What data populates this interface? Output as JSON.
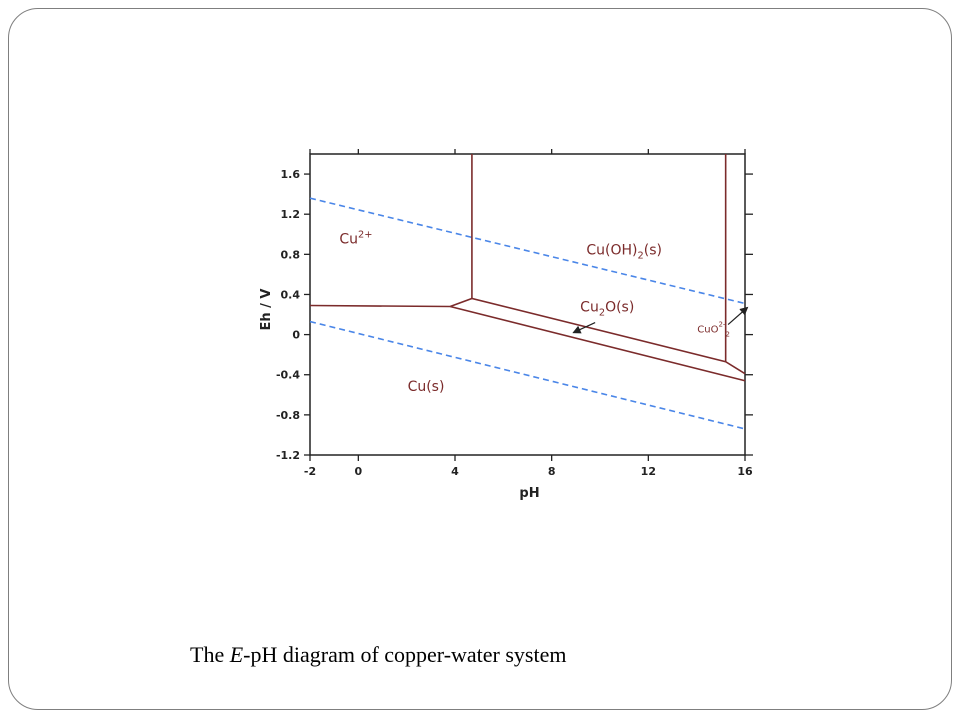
{
  "caption": {
    "prefix": "The ",
    "italic": "E",
    "suffix": "-pH diagram of copper-water system"
  },
  "chart_data": {
    "type": "line",
    "xlabel": "pH",
    "ylabel": "Eh / V",
    "xlim": [
      -2,
      16
    ],
    "ylim": [
      -1.2,
      1.8
    ],
    "xticks": [
      -2,
      0,
      4,
      8,
      12,
      16
    ],
    "yticks": [
      1.6,
      1.2,
      0.8,
      0.4,
      0,
      -0.4,
      -0.8,
      -1.2
    ],
    "grid": false,
    "colors": {
      "boundary": "#7b2b2b",
      "water": "#4a86e8",
      "axis": "#222222"
    },
    "boundaries": [
      {
        "name": "Cu2+/Cu",
        "points": [
          [
            -2,
            0.29
          ],
          [
            3.8,
            0.28
          ]
        ]
      },
      {
        "name": "Cu2+/Cu(OH)2",
        "points": [
          [
            4.7,
            1.8
          ],
          [
            4.7,
            0.36
          ]
        ]
      },
      {
        "name": "Cu(OH)2/CuO2 2-",
        "points": [
          [
            15.2,
            1.8
          ],
          [
            15.2,
            -0.27
          ]
        ]
      },
      {
        "name": "Cu2O/Cu(OH)2",
        "points": [
          [
            3.8,
            0.28
          ],
          [
            4.7,
            0.36
          ],
          [
            15.2,
            -0.27
          ],
          [
            16,
            -0.39
          ]
        ]
      },
      {
        "name": "Cu/Cu2O",
        "points": [
          [
            3.8,
            0.28
          ],
          [
            16,
            -0.46
          ]
        ]
      }
    ],
    "water_lines": [
      {
        "name": "O2/H2O",
        "points": [
          [
            -2,
            1.36
          ],
          [
            16,
            0.31
          ]
        ]
      },
      {
        "name": "H+/H2",
        "points": [
          [
            -2,
            0.13
          ],
          [
            16,
            -0.94
          ]
        ]
      }
    ],
    "regions": [
      {
        "label": "Cu",
        "superscript": "2+",
        "x": -0.1,
        "y": 0.91
      },
      {
        "label": "Cu(OH)",
        "subscript": "2",
        "suffix": "(s)",
        "x": 11,
        "y": 0.8
      },
      {
        "label": "Cu",
        "subscript": "2",
        "suffix": "O(s)",
        "x": 10.3,
        "y": 0.23
      },
      {
        "label": "CuO",
        "subscript": "2",
        "superscript": "2-",
        "x": 14.7,
        "y": 0.02,
        "small": true
      },
      {
        "label": "Cu(s)",
        "x": 2.8,
        "y": -0.56
      }
    ],
    "annotation_arrows": [
      {
        "target": "Cu2O(s)",
        "from": [
          9.8,
          0.12
        ],
        "to": [
          8.9,
          0.02
        ]
      },
      {
        "target": "CuO2 2-",
        "from": [
          15.3,
          0.1
        ],
        "to": [
          16.1,
          0.27
        ]
      }
    ]
  }
}
